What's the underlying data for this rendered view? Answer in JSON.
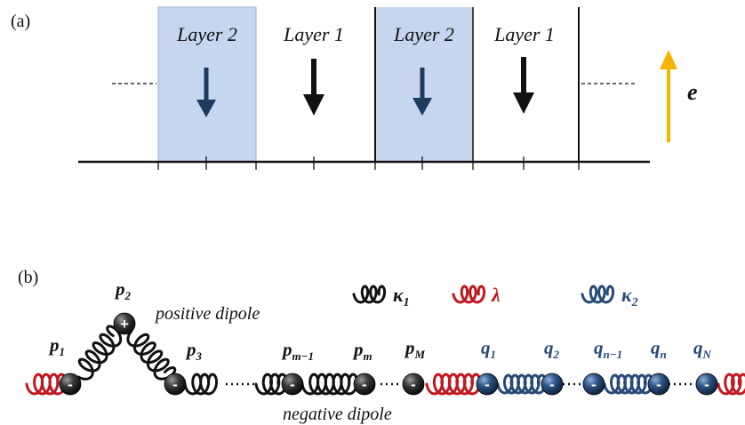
{
  "panel_a": {
    "tag": "(a)",
    "layers": [
      {
        "label": "Layer 2"
      },
      {
        "label": "Layer 1"
      },
      {
        "label": "Layer 2"
      },
      {
        "label": "Layer 1"
      }
    ],
    "field_label": "e"
  },
  "panel_b": {
    "tag": "(b)",
    "legend": [
      {
        "symbol": "κ",
        "sub": "1",
        "color": "#111111"
      },
      {
        "symbol": "λ",
        "sub": "",
        "color": "#c0181e"
      },
      {
        "symbol": "κ",
        "sub": "2",
        "color": "#274a78"
      }
    ],
    "positive_label": "positive dipole",
    "negative_label": "negative dipole",
    "plus_sign": "+",
    "minus_sign": "-",
    "particles": [
      {
        "base": "p",
        "sub": "1"
      },
      {
        "base": "p",
        "sub": "2"
      },
      {
        "base": "p",
        "sub": "3"
      },
      {
        "base": "p",
        "sub": "m−1"
      },
      {
        "base": "p",
        "sub": "m"
      },
      {
        "base": "p",
        "sub": "M"
      },
      {
        "base": "q",
        "sub": "1"
      },
      {
        "base": "q",
        "sub": "2"
      },
      {
        "base": "q",
        "sub": "n−1"
      },
      {
        "base": "q",
        "sub": "n"
      },
      {
        "base": "q",
        "sub": "N"
      }
    ]
  },
  "colors": {
    "layer2_fill": "#c6d6ef",
    "dark_arrow": "#1f3a5f",
    "black": "#111111",
    "field_arrow": "#f5b400",
    "red_spring": "#c0181e",
    "blue": "#274a78"
  }
}
